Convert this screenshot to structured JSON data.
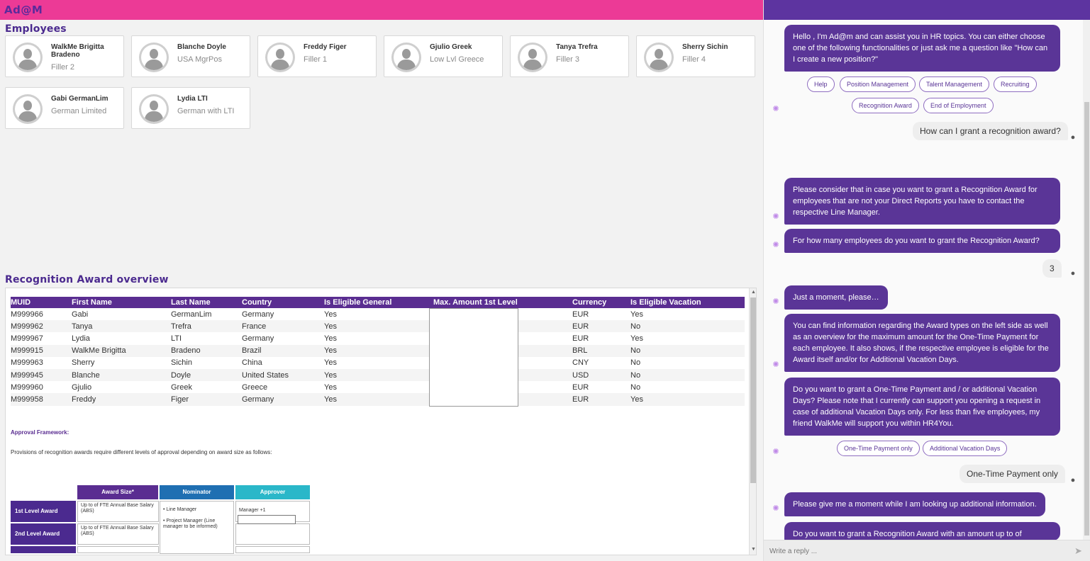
{
  "app": {
    "logo": "Ad@M"
  },
  "employees": {
    "title": "Employees",
    "cards": [
      {
        "name": "WalkMe Brigitta Bradeno",
        "role": "Filler 2"
      },
      {
        "name": "Blanche Doyle",
        "role": "USA MgrPos"
      },
      {
        "name": "Freddy Figer",
        "role": "Filler 1"
      },
      {
        "name": "Gjulio Greek",
        "role": "Low Lvl Greece"
      },
      {
        "name": "Tanya Trefra",
        "role": "Filler 3"
      },
      {
        "name": "Sherry Sichin",
        "role": "Filler 4"
      },
      {
        "name": "Gabi GermanLim",
        "role": "German Limited"
      },
      {
        "name": "Lydia LTI",
        "role": "German with LTI"
      }
    ]
  },
  "recognition": {
    "title": "Recognition Award overview",
    "columns": [
      "MUID",
      "First Name",
      "Last Name",
      "Country",
      "Is Eligible General",
      "Max. Amount 1st Level",
      "Currency",
      "Is Eligible Vacation"
    ],
    "rows": [
      [
        "M999966",
        "Gabi",
        "GermanLim",
        "Germany",
        "Yes",
        "",
        "EUR",
        "Yes"
      ],
      [
        "M999962",
        "Tanya",
        "Trefra",
        "France",
        "Yes",
        "",
        "EUR",
        "No"
      ],
      [
        "M999967",
        "Lydia",
        "LTI",
        "Germany",
        "Yes",
        "",
        "EUR",
        "Yes"
      ],
      [
        "M999915",
        "WalkMe Brigitta",
        "Bradeno",
        "Brazil",
        "Yes",
        "",
        "BRL",
        "No"
      ],
      [
        "M999963",
        "Sherry",
        "Sichin",
        "China",
        "Yes",
        "",
        "CNY",
        "No"
      ],
      [
        "M999945",
        "Blanche",
        "Doyle",
        "United States",
        "Yes",
        "",
        "USD",
        "No"
      ],
      [
        "M999960",
        "Gjulio",
        "Greek",
        "Greece",
        "Yes",
        "",
        "EUR",
        "No"
      ],
      [
        "M999958",
        "Freddy",
        "Figer",
        "Germany",
        "Yes",
        "",
        "EUR",
        "Yes"
      ]
    ],
    "approval_title": "Approval Framework:",
    "approval_text": "Provisions of recognition awards require different levels of approval depending on award size as follows:",
    "framework": {
      "headers": [
        "Award Size*",
        "Nominator",
        "Approver"
      ],
      "header_colors": [
        "#5a2d91",
        "#1f6fb2",
        "#2ab7c9"
      ],
      "rows": [
        {
          "label": "1st Level Award",
          "size": "Up to        of FTE Annual Base Salary (ABS)",
          "approver": "Manager +1"
        },
        {
          "label": "2nd Level Award",
          "size": "Up to        of FTE Annual Base Salary (ABS)",
          "approver": ""
        }
      ],
      "nominator": "• Line Manager\n\n• Project Manager (Line manager to be informed)"
    }
  },
  "chat": {
    "messages": [
      {
        "type": "bot",
        "text": "Hello          , I'm Ad@m and can assist you in HR topics. You can either choose one of the following functionalities or just ask me a question like \"How can I create a new position?\""
      },
      {
        "type": "user",
        "text": "How can I grant a recognition award?"
      },
      {
        "type": "bot",
        "text": "Please consider that in case you want to grant a Recognition Award for employees that are not your Direct Reports you have to contact the respective Line Manager."
      },
      {
        "type": "bot",
        "text": "For how many employees do you want to grant the Recognition Award?"
      },
      {
        "type": "user",
        "text": "3"
      },
      {
        "type": "bot",
        "text": "Just a moment, please…"
      },
      {
        "type": "bot",
        "text": "You can find information regarding the Award types on the left side as well as an overview for the maximum amount for the One-Time Payment for each employee. It also shows, if the respective employee is eligible for the Award itself and/or for Additional Vacation Days."
      },
      {
        "type": "bot",
        "text": "Do you want to grant a One-Time Payment and / or additional Vacation Days? Please note that I currently can support you opening a request in case of additional Vacation Days only. For less than five employees, my friend WalkMe will support you within HR4You."
      },
      {
        "type": "user",
        "text": "One-Time Payment only"
      },
      {
        "type": "bot",
        "text": "Please give me a moment while I am looking up additional information."
      },
      {
        "type": "bot",
        "text": "Do you want to grant a Recognition Award with an amount up to        of"
      }
    ],
    "chips_1": [
      "Help",
      "Position Management",
      "Talent Management",
      "Recruiting",
      "Recognition Award",
      "End of Employment"
    ],
    "chips_2": [
      "One-Time Payment only",
      "Additional Vacation Days"
    ],
    "reply_placeholder": "Write a reply ..."
  }
}
